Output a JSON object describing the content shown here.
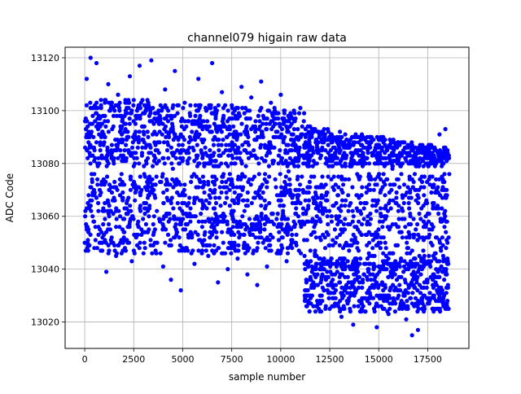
{
  "chart_data": {
    "type": "scatter",
    "title": "channel079 higain raw data",
    "xlabel": "sample number",
    "ylabel": "ADC Code",
    "xlim": [
      -1000,
      19600
    ],
    "ylim": [
      13010,
      13124
    ],
    "x_ticks": [
      0,
      2500,
      5000,
      7500,
      10000,
      12500,
      15000,
      17500
    ],
    "x_tick_labels": [
      "0",
      "2500",
      "5000",
      "7500",
      "10000",
      "12500",
      "15000",
      "17500"
    ],
    "y_ticks": [
      13020,
      13040,
      13060,
      13080,
      13100,
      13120
    ],
    "y_tick_labels": [
      "13020",
      "13040",
      "13060",
      "13080",
      "13100",
      "13120"
    ],
    "grid": true,
    "series": [
      {
        "color": "#0000ff",
        "marker": "circle",
        "x_range": [
          0,
          18600
        ],
        "points": [
          [
            0,
            13050
          ],
          [
            100,
            13112
          ],
          [
            150,
            13090
          ],
          [
            200,
            13068
          ],
          [
            300,
            13120
          ],
          [
            350,
            13076
          ],
          [
            400,
            13101
          ],
          [
            450,
            13058
          ],
          [
            500,
            13085
          ],
          [
            600,
            13118
          ],
          [
            700,
            13062
          ],
          [
            800,
            13095
          ],
          [
            900,
            13047
          ],
          [
            1000,
            13072
          ],
          [
            1100,
            13039
          ],
          [
            1150,
            13081
          ],
          [
            1200,
            13110
          ],
          [
            1300,
            13055
          ],
          [
            1400,
            13093
          ],
          [
            1500,
            13066
          ],
          [
            1600,
            13045
          ],
          [
            1700,
            13106
          ],
          [
            1800,
            13074
          ],
          [
            1900,
            13088
          ],
          [
            2000,
            13052
          ],
          [
            2100,
            13099
          ],
          [
            2200,
            13061
          ],
          [
            2300,
            13113
          ],
          [
            2400,
            13043
          ],
          [
            2500,
            13079
          ],
          [
            2600,
            13092
          ],
          [
            2700,
            13057
          ],
          [
            2800,
            13117
          ],
          [
            2900,
            13070
          ],
          [
            3000,
            13046
          ],
          [
            3100,
            13086
          ],
          [
            3200,
            13104
          ],
          [
            3300,
            13063
          ],
          [
            3400,
            13119
          ],
          [
            3500,
            13049
          ],
          [
            3600,
            13082
          ],
          [
            3700,
            13097
          ],
          [
            3800,
            13059
          ],
          [
            3900,
            13073
          ],
          [
            4000,
            13041
          ],
          [
            4100,
            13108
          ],
          [
            4200,
            13067
          ],
          [
            4300,
            13090
          ],
          [
            4400,
            13036
          ],
          [
            4500,
            13078
          ],
          [
            4600,
            13115
          ],
          [
            4700,
            13054
          ],
          [
            4800,
            13087
          ],
          [
            4900,
            13032
          ],
          [
            5000,
            13069
          ],
          [
            5100,
            13103
          ],
          [
            5200,
            13048
          ],
          [
            5300,
            13084
          ],
          [
            5400,
            13060
          ],
          [
            5500,
            13096
          ],
          [
            5600,
            13042
          ],
          [
            5700,
            13075
          ],
          [
            5800,
            13112
          ],
          [
            5900,
            13051
          ],
          [
            6000,
            13089
          ],
          [
            6100,
            13064
          ],
          [
            6200,
            13100
          ],
          [
            6300,
            13045
          ],
          [
            6400,
            13080
          ],
          [
            6500,
            13118
          ],
          [
            6600,
            13056
          ],
          [
            6700,
            13093
          ],
          [
            6800,
            13035
          ],
          [
            6900,
            13071
          ],
          [
            7000,
            13107
          ],
          [
            7100,
            13058
          ],
          [
            7200,
            13085
          ],
          [
            7300,
            13040
          ],
          [
            7400,
            13076
          ],
          [
            7500,
            13102
          ],
          [
            7600,
            13062
          ],
          [
            7700,
            13098
          ],
          [
            7800,
            13044
          ],
          [
            7900,
            13082
          ],
          [
            8000,
            13109
          ],
          [
            8100,
            13053
          ],
          [
            8200,
            13088
          ],
          [
            8300,
            13038
          ],
          [
            8400,
            13074
          ],
          [
            8500,
            13105
          ],
          [
            8600,
            13057
          ],
          [
            8700,
            13092
          ],
          [
            8800,
            13034
          ],
          [
            8900,
            13068
          ],
          [
            9000,
            13111
          ],
          [
            9100,
            13050
          ],
          [
            9200,
            13086
          ],
          [
            9300,
            13041
          ],
          [
            9400,
            13079
          ],
          [
            9500,
            13103
          ],
          [
            9600,
            13061
          ],
          [
            9700,
            13095
          ],
          [
            9800,
            13046
          ],
          [
            9900,
            13083
          ],
          [
            10000,
            13106
          ],
          [
            10100,
            13055
          ],
          [
            10200,
            13090
          ],
          [
            10300,
            13043
          ],
          [
            10400,
            13077
          ],
          [
            10500,
            13099
          ],
          [
            10600,
            13065
          ],
          [
            10700,
            13096
          ],
          [
            10800,
            13049
          ],
          [
            10900,
            13081
          ],
          [
            11000,
            13101
          ],
          [
            11100,
            13058
          ],
          [
            11200,
            13087
          ],
          [
            11300,
            13036
          ],
          [
            11400,
            13071
          ],
          [
            11500,
            13094
          ],
          [
            11600,
            13030
          ],
          [
            11700,
            13066
          ],
          [
            11800,
            13089
          ],
          [
            11900,
            13027
          ],
          [
            12000,
            13062
          ],
          [
            12100,
            13085
          ],
          [
            12200,
            13032
          ],
          [
            12300,
            13072
          ],
          [
            12400,
            13093
          ],
          [
            12500,
            13025
          ],
          [
            12600,
            13058
          ],
          [
            12700,
            13083
          ],
          [
            12800,
            13029
          ],
          [
            12900,
            13068
          ],
          [
            13000,
            13090
          ],
          [
            13100,
            13022
          ],
          [
            13200,
            13055
          ],
          [
            13300,
            13079
          ],
          [
            13400,
            13031
          ],
          [
            13500,
            13064
          ],
          [
            13600,
            13087
          ],
          [
            13700,
            13019
          ],
          [
            13800,
            13052
          ],
          [
            13900,
            13076
          ],
          [
            14000,
            13028
          ],
          [
            14100,
            13061
          ],
          [
            14200,
            13084
          ],
          [
            14300,
            13024
          ],
          [
            14400,
            13057
          ],
          [
            14500,
            13088
          ],
          [
            14600,
            13033
          ],
          [
            14700,
            13066
          ],
          [
            14800,
            13080
          ],
          [
            14900,
            13018
          ],
          [
            15000,
            13050
          ],
          [
            15100,
            13074
          ],
          [
            15200,
            13029
          ],
          [
            15300,
            13063
          ],
          [
            15400,
            13086
          ],
          [
            15500,
            13023
          ],
          [
            15600,
            13056
          ],
          [
            15700,
            13078
          ],
          [
            15800,
            13032
          ],
          [
            15900,
            13067
          ],
          [
            16000,
            13083
          ],
          [
            16100,
            13026
          ],
          [
            16200,
            13059
          ],
          [
            16300,
            13072
          ],
          [
            16400,
            13021
          ],
          [
            16500,
            13048
          ],
          [
            16600,
            13069
          ],
          [
            16700,
            13015
          ],
          [
            16800,
            13044
          ],
          [
            16900,
            13066
          ],
          [
            17000,
            13017
          ],
          [
            17100,
            13052
          ],
          [
            17200,
            13075
          ],
          [
            17300,
            13024
          ],
          [
            17400,
            13060
          ],
          [
            17500,
            13085
          ],
          [
            17600,
            13028
          ],
          [
            17700,
            13057
          ],
          [
            17800,
            13080
          ],
          [
            17900,
            13035
          ],
          [
            18000,
            13064
          ],
          [
            18100,
            13091
          ],
          [
            18200,
            13031
          ],
          [
            18300,
            13070
          ],
          [
            18400,
            13093
          ],
          [
            18500,
            13042
          ],
          [
            18600,
            13076
          ]
        ],
        "bands": [
          {
            "x_from": 0,
            "x_to": 11200,
            "y_from_start": 13046,
            "y_from_end": 13046,
            "y_to_start": 13076,
            "y_to_end": 13076
          },
          {
            "x_from": 11200,
            "x_to": 18600,
            "y_from_start": 13040,
            "y_from_end": 13040,
            "y_to_start": 13076,
            "y_to_end": 13076
          },
          {
            "x_from": 0,
            "x_to": 11200,
            "y_from_start": 13079,
            "y_from_end": 13079,
            "y_to_start": 13105,
            "y_to_end": 13100
          },
          {
            "x_from": 11200,
            "x_to": 18600,
            "y_from_start": 13079,
            "y_from_end": 13079,
            "y_to_start": 13094,
            "y_to_end": 13086
          },
          {
            "x_from": 11200,
            "x_to": 18600,
            "y_from_start": 13024,
            "y_from_end": 13024,
            "y_to_start": 13043,
            "y_to_end": 13043
          }
        ]
      }
    ]
  }
}
